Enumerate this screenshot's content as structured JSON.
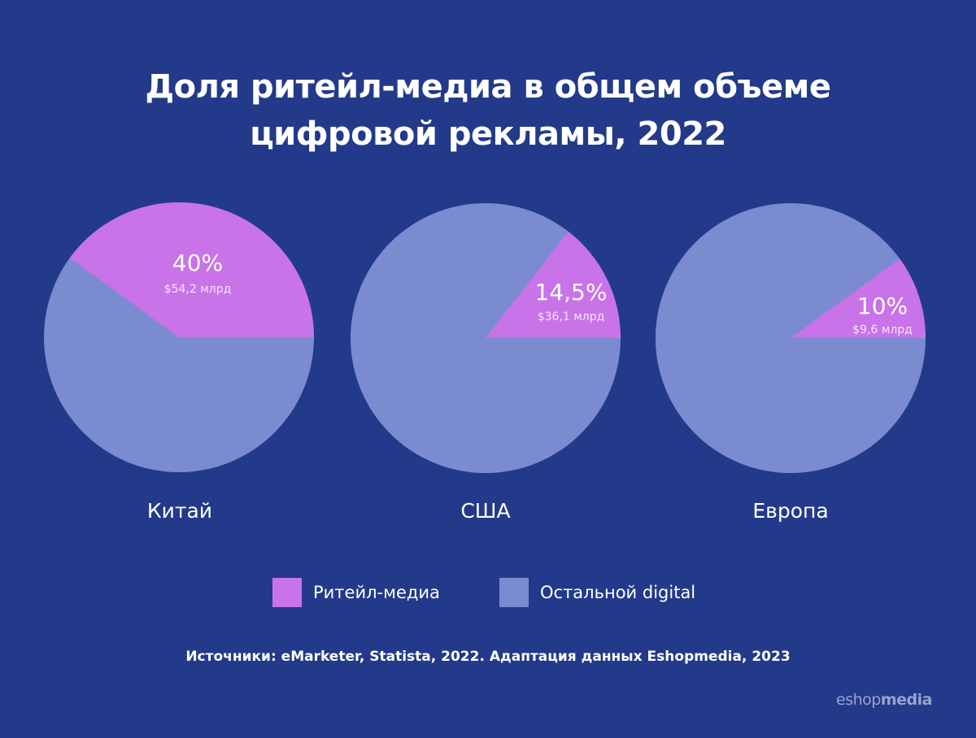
{
  "chart_data": {
    "type": "pie",
    "title": "Доля ритейл-медиа в общем объеме цифровой рекламы, 2022",
    "title_lines": [
      "Доля ритейл-медиа в общем объеме",
      "цифровой рекламы, 2022"
    ],
    "legend": {
      "position": "bottom",
      "entries": [
        {
          "name": "Ритейл-медиа",
          "color": "#C873E8"
        },
        {
          "name": "Остальной digital",
          "color": "#7B8BD0"
        }
      ]
    },
    "pies": [
      {
        "region": "Китай",
        "retail_share": 40,
        "label_pct": "40%",
        "label_value": "$54,2 млрд"
      },
      {
        "region": "США",
        "retail_share": 14.5,
        "label_pct": "14,5%",
        "label_value": "$36,1 млрд"
      },
      {
        "region": "Европа",
        "retail_share": 10,
        "label_pct": "10%",
        "label_value": "$9,6 млрд"
      }
    ],
    "source": "Источники: eMarketer, Statista, 2022. Адаптация данных Eshopmedia, 2023"
  },
  "colors": {
    "background": "#233A8A",
    "retail": "#C873E8",
    "other": "#7B8BD0"
  },
  "logo": {
    "part1": "eshop",
    "part2": "media"
  }
}
